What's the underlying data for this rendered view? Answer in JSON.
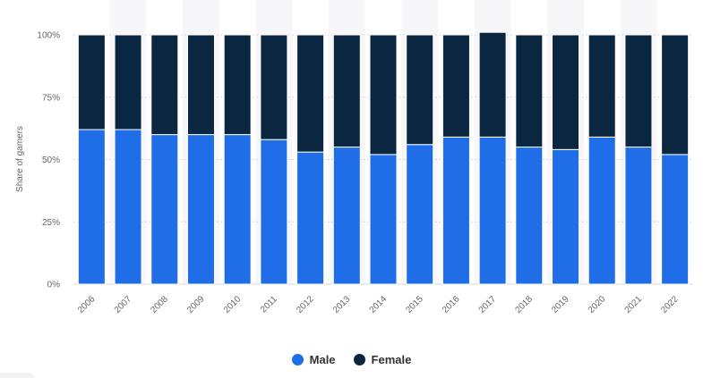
{
  "chart_data": {
    "type": "bar",
    "stacked": true,
    "categories": [
      "2006",
      "2007",
      "2008",
      "2009",
      "2010",
      "2011",
      "2012",
      "2013",
      "2014",
      "2015",
      "2016",
      "2017",
      "2018",
      "2019",
      "2020",
      "2021",
      "2022"
    ],
    "series": [
      {
        "name": "Male",
        "color": "#1f6ee8",
        "values": [
          62,
          62,
          60,
          60,
          60,
          58,
          53,
          55,
          52,
          56,
          59,
          59,
          55,
          54,
          59,
          55,
          52
        ]
      },
      {
        "name": "Female",
        "color": "#0b2641",
        "values": [
          38,
          38,
          40,
          40,
          40,
          42,
          47,
          45,
          48,
          44,
          41,
          42,
          45,
          46,
          41,
          45,
          48
        ]
      }
    ],
    "ylabel": "Share of gamers",
    "xlabel": "",
    "ylim": [
      0,
      100
    ],
    "yticks": [
      0,
      25,
      50,
      75,
      100
    ],
    "ytick_labels": [
      "0%",
      "25%",
      "50%",
      "75%",
      "100%"
    ],
    "grid": true,
    "legend_position": "bottom-center"
  }
}
